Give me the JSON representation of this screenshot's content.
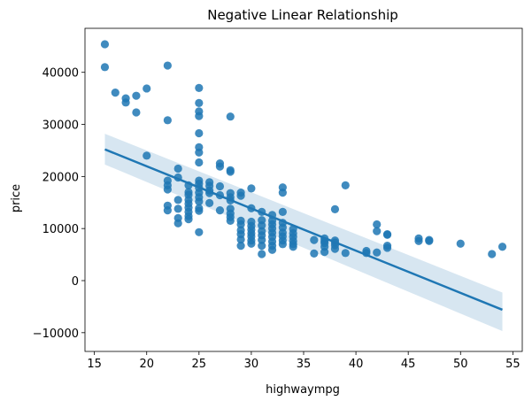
{
  "chart_data": {
    "type": "scatter",
    "title": "Negative Linear Relationship",
    "xlabel": "highwaympg",
    "ylabel": "price",
    "xlim": [
      14.1,
      55.9
    ],
    "ylim": [
      -13600,
      48450
    ],
    "xticks": [
      15,
      20,
      25,
      30,
      35,
      40,
      45,
      50,
      55
    ],
    "yticks": [
      -10000,
      0,
      10000,
      20000,
      30000,
      40000
    ],
    "grid": false,
    "point_color": "#1f77b4",
    "regression": {
      "x": [
        16,
        54
      ],
      "y": [
        25200,
        -5600
      ],
      "ci_upper": [
        28200,
        -2300
      ],
      "ci_lower": [
        22300,
        -9700
      ],
      "line_color": "#1f77b4",
      "band_color": "#1f77b4"
    },
    "points": [
      {
        "x": 16,
        "y": 45400
      },
      {
        "x": 16,
        "y": 41000
      },
      {
        "x": 17,
        "y": 36100
      },
      {
        "x": 18,
        "y": 35000
      },
      {
        "x": 18,
        "y": 34200
      },
      {
        "x": 19,
        "y": 35500
      },
      {
        "x": 19,
        "y": 32300
      },
      {
        "x": 20,
        "y": 36900
      },
      {
        "x": 20,
        "y": 24000
      },
      {
        "x": 22,
        "y": 41300
      },
      {
        "x": 22,
        "y": 30800
      },
      {
        "x": 22,
        "y": 19200
      },
      {
        "x": 22,
        "y": 18300
      },
      {
        "x": 22,
        "y": 17500
      },
      {
        "x": 22,
        "y": 14400
      },
      {
        "x": 22,
        "y": 13500
      },
      {
        "x": 23,
        "y": 21500
      },
      {
        "x": 23,
        "y": 19800
      },
      {
        "x": 23,
        "y": 15500
      },
      {
        "x": 23,
        "y": 13800
      },
      {
        "x": 23,
        "y": 12000
      },
      {
        "x": 23,
        "y": 11000
      },
      {
        "x": 24,
        "y": 18300
      },
      {
        "x": 24,
        "y": 17000
      },
      {
        "x": 24,
        "y": 16500
      },
      {
        "x": 24,
        "y": 15500
      },
      {
        "x": 24,
        "y": 14800
      },
      {
        "x": 24,
        "y": 14000
      },
      {
        "x": 24,
        "y": 13200
      },
      {
        "x": 24,
        "y": 12400
      },
      {
        "x": 24,
        "y": 11800
      },
      {
        "x": 25,
        "y": 37000
      },
      {
        "x": 25,
        "y": 34100
      },
      {
        "x": 25,
        "y": 32500
      },
      {
        "x": 25,
        "y": 31600
      },
      {
        "x": 25,
        "y": 28300
      },
      {
        "x": 25,
        "y": 25600
      },
      {
        "x": 25,
        "y": 24600
      },
      {
        "x": 25,
        "y": 22700
      },
      {
        "x": 25,
        "y": 19200
      },
      {
        "x": 25,
        "y": 18600
      },
      {
        "x": 25,
        "y": 17800
      },
      {
        "x": 25,
        "y": 16900
      },
      {
        "x": 25,
        "y": 16000
      },
      {
        "x": 25,
        "y": 15200
      },
      {
        "x": 25,
        "y": 13900
      },
      {
        "x": 25,
        "y": 13400
      },
      {
        "x": 25,
        "y": 9300
      },
      {
        "x": 26,
        "y": 18900
      },
      {
        "x": 26,
        "y": 18200
      },
      {
        "x": 26,
        "y": 17300
      },
      {
        "x": 26,
        "y": 16800
      },
      {
        "x": 26,
        "y": 14900
      },
      {
        "x": 27,
        "y": 22500
      },
      {
        "x": 27,
        "y": 21900
      },
      {
        "x": 27,
        "y": 18100
      },
      {
        "x": 27,
        "y": 16400
      },
      {
        "x": 27,
        "y": 13500
      },
      {
        "x": 28,
        "y": 31500
      },
      {
        "x": 28,
        "y": 21200
      },
      {
        "x": 28,
        "y": 20900
      },
      {
        "x": 28,
        "y": 16800
      },
      {
        "x": 28,
        "y": 16000
      },
      {
        "x": 28,
        "y": 15400
      },
      {
        "x": 28,
        "y": 13800
      },
      {
        "x": 28,
        "y": 12900
      },
      {
        "x": 28,
        "y": 12200
      },
      {
        "x": 28,
        "y": 11500
      },
      {
        "x": 29,
        "y": 16900
      },
      {
        "x": 29,
        "y": 16300
      },
      {
        "x": 29,
        "y": 11500
      },
      {
        "x": 29,
        "y": 10800
      },
      {
        "x": 29,
        "y": 9700
      },
      {
        "x": 29,
        "y": 8900
      },
      {
        "x": 29,
        "y": 7900
      },
      {
        "x": 29,
        "y": 6700
      },
      {
        "x": 30,
        "y": 17700
      },
      {
        "x": 30,
        "y": 13900
      },
      {
        "x": 30,
        "y": 11300
      },
      {
        "x": 30,
        "y": 10500
      },
      {
        "x": 30,
        "y": 9800
      },
      {
        "x": 30,
        "y": 9100
      },
      {
        "x": 30,
        "y": 8500
      },
      {
        "x": 30,
        "y": 7700
      },
      {
        "x": 30,
        "y": 7100
      },
      {
        "x": 31,
        "y": 13200
      },
      {
        "x": 31,
        "y": 11600
      },
      {
        "x": 31,
        "y": 10600
      },
      {
        "x": 31,
        "y": 9500
      },
      {
        "x": 31,
        "y": 8700
      },
      {
        "x": 31,
        "y": 7800
      },
      {
        "x": 31,
        "y": 6700
      },
      {
        "x": 31,
        "y": 5100
      },
      {
        "x": 32,
        "y": 12600
      },
      {
        "x": 32,
        "y": 11500
      },
      {
        "x": 32,
        "y": 10800
      },
      {
        "x": 32,
        "y": 10000
      },
      {
        "x": 32,
        "y": 9200
      },
      {
        "x": 32,
        "y": 8400
      },
      {
        "x": 32,
        "y": 7500
      },
      {
        "x": 32,
        "y": 6700
      },
      {
        "x": 32,
        "y": 5900
      },
      {
        "x": 33,
        "y": 17900
      },
      {
        "x": 33,
        "y": 16900
      },
      {
        "x": 33,
        "y": 13200
      },
      {
        "x": 33,
        "y": 11100
      },
      {
        "x": 33,
        "y": 10200
      },
      {
        "x": 33,
        "y": 9200
      },
      {
        "x": 33,
        "y": 8500
      },
      {
        "x": 33,
        "y": 7700
      },
      {
        "x": 33,
        "y": 7000
      },
      {
        "x": 34,
        "y": 9900
      },
      {
        "x": 34,
        "y": 9100
      },
      {
        "x": 34,
        "y": 8400
      },
      {
        "x": 34,
        "y": 7600
      },
      {
        "x": 34,
        "y": 7000
      },
      {
        "x": 34,
        "y": 6500
      },
      {
        "x": 36,
        "y": 7800
      },
      {
        "x": 36,
        "y": 5200
      },
      {
        "x": 37,
        "y": 8100
      },
      {
        "x": 37,
        "y": 7600
      },
      {
        "x": 37,
        "y": 7200
      },
      {
        "x": 37,
        "y": 6500
      },
      {
        "x": 37,
        "y": 5500
      },
      {
        "x": 38,
        "y": 13700
      },
      {
        "x": 38,
        "y": 7700
      },
      {
        "x": 38,
        "y": 7300
      },
      {
        "x": 38,
        "y": 6800
      },
      {
        "x": 38,
        "y": 6100
      },
      {
        "x": 39,
        "y": 18300
      },
      {
        "x": 39,
        "y": 5300
      },
      {
        "x": 41,
        "y": 5700
      },
      {
        "x": 41,
        "y": 5300
      },
      {
        "x": 42,
        "y": 10800
      },
      {
        "x": 42,
        "y": 9500
      },
      {
        "x": 42,
        "y": 5400
      },
      {
        "x": 43,
        "y": 8900
      },
      {
        "x": 43,
        "y": 8800
      },
      {
        "x": 43,
        "y": 6700
      },
      {
        "x": 43,
        "y": 6300
      },
      {
        "x": 46,
        "y": 8100
      },
      {
        "x": 46,
        "y": 7600
      },
      {
        "x": 47,
        "y": 7800
      },
      {
        "x": 47,
        "y": 7600
      },
      {
        "x": 50,
        "y": 7100
      },
      {
        "x": 53,
        "y": 5100
      },
      {
        "x": 54,
        "y": 6500
      }
    ]
  }
}
